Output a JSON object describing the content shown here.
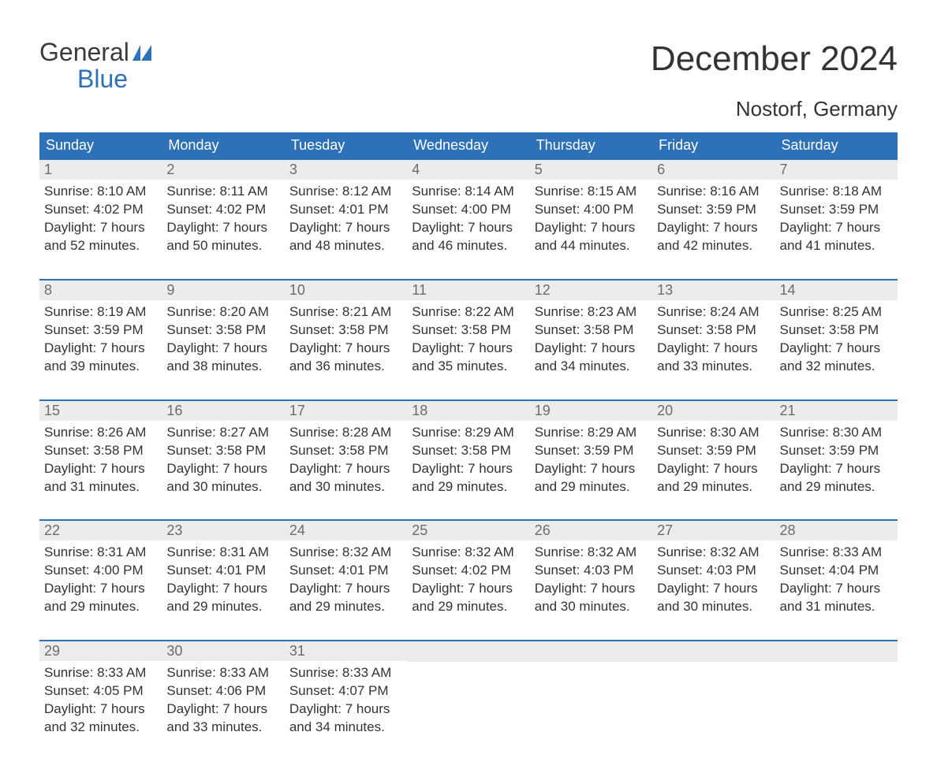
{
  "logo": {
    "text1": "General",
    "text2": "Blue"
  },
  "title": "December 2024",
  "subtitle": "Nostorf, Germany",
  "colors": {
    "header_bg": "#2d72b8",
    "header_text": "#ffffff",
    "daynum_bg": "#ececec",
    "daynum_text": "#6c6c6c",
    "body_text": "#333333",
    "week_border": "#2d72b8",
    "page_bg": "#ffffff"
  },
  "typography": {
    "title_fontsize": 44,
    "subtitle_fontsize": 26,
    "weekday_fontsize": 18,
    "daynum_fontsize": 18,
    "body_fontsize": 17,
    "logo_fontsize": 32
  },
  "weekdays": [
    "Sunday",
    "Monday",
    "Tuesday",
    "Wednesday",
    "Thursday",
    "Friday",
    "Saturday"
  ],
  "weeks": [
    [
      {
        "n": "1",
        "sunrise": "Sunrise: 8:10 AM",
        "sunset": "Sunset: 4:02 PM",
        "d1": "Daylight: 7 hours",
        "d2": "and 52 minutes."
      },
      {
        "n": "2",
        "sunrise": "Sunrise: 8:11 AM",
        "sunset": "Sunset: 4:02 PM",
        "d1": "Daylight: 7 hours",
        "d2": "and 50 minutes."
      },
      {
        "n": "3",
        "sunrise": "Sunrise: 8:12 AM",
        "sunset": "Sunset: 4:01 PM",
        "d1": "Daylight: 7 hours",
        "d2": "and 48 minutes."
      },
      {
        "n": "4",
        "sunrise": "Sunrise: 8:14 AM",
        "sunset": "Sunset: 4:00 PM",
        "d1": "Daylight: 7 hours",
        "d2": "and 46 minutes."
      },
      {
        "n": "5",
        "sunrise": "Sunrise: 8:15 AM",
        "sunset": "Sunset: 4:00 PM",
        "d1": "Daylight: 7 hours",
        "d2": "and 44 minutes."
      },
      {
        "n": "6",
        "sunrise": "Sunrise: 8:16 AM",
        "sunset": "Sunset: 3:59 PM",
        "d1": "Daylight: 7 hours",
        "d2": "and 42 minutes."
      },
      {
        "n": "7",
        "sunrise": "Sunrise: 8:18 AM",
        "sunset": "Sunset: 3:59 PM",
        "d1": "Daylight: 7 hours",
        "d2": "and 41 minutes."
      }
    ],
    [
      {
        "n": "8",
        "sunrise": "Sunrise: 8:19 AM",
        "sunset": "Sunset: 3:59 PM",
        "d1": "Daylight: 7 hours",
        "d2": "and 39 minutes."
      },
      {
        "n": "9",
        "sunrise": "Sunrise: 8:20 AM",
        "sunset": "Sunset: 3:58 PM",
        "d1": "Daylight: 7 hours",
        "d2": "and 38 minutes."
      },
      {
        "n": "10",
        "sunrise": "Sunrise: 8:21 AM",
        "sunset": "Sunset: 3:58 PM",
        "d1": "Daylight: 7 hours",
        "d2": "and 36 minutes."
      },
      {
        "n": "11",
        "sunrise": "Sunrise: 8:22 AM",
        "sunset": "Sunset: 3:58 PM",
        "d1": "Daylight: 7 hours",
        "d2": "and 35 minutes."
      },
      {
        "n": "12",
        "sunrise": "Sunrise: 8:23 AM",
        "sunset": "Sunset: 3:58 PM",
        "d1": "Daylight: 7 hours",
        "d2": "and 34 minutes."
      },
      {
        "n": "13",
        "sunrise": "Sunrise: 8:24 AM",
        "sunset": "Sunset: 3:58 PM",
        "d1": "Daylight: 7 hours",
        "d2": "and 33 minutes."
      },
      {
        "n": "14",
        "sunrise": "Sunrise: 8:25 AM",
        "sunset": "Sunset: 3:58 PM",
        "d1": "Daylight: 7 hours",
        "d2": "and 32 minutes."
      }
    ],
    [
      {
        "n": "15",
        "sunrise": "Sunrise: 8:26 AM",
        "sunset": "Sunset: 3:58 PM",
        "d1": "Daylight: 7 hours",
        "d2": "and 31 minutes."
      },
      {
        "n": "16",
        "sunrise": "Sunrise: 8:27 AM",
        "sunset": "Sunset: 3:58 PM",
        "d1": "Daylight: 7 hours",
        "d2": "and 30 minutes."
      },
      {
        "n": "17",
        "sunrise": "Sunrise: 8:28 AM",
        "sunset": "Sunset: 3:58 PM",
        "d1": "Daylight: 7 hours",
        "d2": "and 30 minutes."
      },
      {
        "n": "18",
        "sunrise": "Sunrise: 8:29 AM",
        "sunset": "Sunset: 3:58 PM",
        "d1": "Daylight: 7 hours",
        "d2": "and 29 minutes."
      },
      {
        "n": "19",
        "sunrise": "Sunrise: 8:29 AM",
        "sunset": "Sunset: 3:59 PM",
        "d1": "Daylight: 7 hours",
        "d2": "and 29 minutes."
      },
      {
        "n": "20",
        "sunrise": "Sunrise: 8:30 AM",
        "sunset": "Sunset: 3:59 PM",
        "d1": "Daylight: 7 hours",
        "d2": "and 29 minutes."
      },
      {
        "n": "21",
        "sunrise": "Sunrise: 8:30 AM",
        "sunset": "Sunset: 3:59 PM",
        "d1": "Daylight: 7 hours",
        "d2": "and 29 minutes."
      }
    ],
    [
      {
        "n": "22",
        "sunrise": "Sunrise: 8:31 AM",
        "sunset": "Sunset: 4:00 PM",
        "d1": "Daylight: 7 hours",
        "d2": "and 29 minutes."
      },
      {
        "n": "23",
        "sunrise": "Sunrise: 8:31 AM",
        "sunset": "Sunset: 4:01 PM",
        "d1": "Daylight: 7 hours",
        "d2": "and 29 minutes."
      },
      {
        "n": "24",
        "sunrise": "Sunrise: 8:32 AM",
        "sunset": "Sunset: 4:01 PM",
        "d1": "Daylight: 7 hours",
        "d2": "and 29 minutes."
      },
      {
        "n": "25",
        "sunrise": "Sunrise: 8:32 AM",
        "sunset": "Sunset: 4:02 PM",
        "d1": "Daylight: 7 hours",
        "d2": "and 29 minutes."
      },
      {
        "n": "26",
        "sunrise": "Sunrise: 8:32 AM",
        "sunset": "Sunset: 4:03 PM",
        "d1": "Daylight: 7 hours",
        "d2": "and 30 minutes."
      },
      {
        "n": "27",
        "sunrise": "Sunrise: 8:32 AM",
        "sunset": "Sunset: 4:03 PM",
        "d1": "Daylight: 7 hours",
        "d2": "and 30 minutes."
      },
      {
        "n": "28",
        "sunrise": "Sunrise: 8:33 AM",
        "sunset": "Sunset: 4:04 PM",
        "d1": "Daylight: 7 hours",
        "d2": "and 31 minutes."
      }
    ],
    [
      {
        "n": "29",
        "sunrise": "Sunrise: 8:33 AM",
        "sunset": "Sunset: 4:05 PM",
        "d1": "Daylight: 7 hours",
        "d2": "and 32 minutes."
      },
      {
        "n": "30",
        "sunrise": "Sunrise: 8:33 AM",
        "sunset": "Sunset: 4:06 PM",
        "d1": "Daylight: 7 hours",
        "d2": "and 33 minutes."
      },
      {
        "n": "31",
        "sunrise": "Sunrise: 8:33 AM",
        "sunset": "Sunset: 4:07 PM",
        "d1": "Daylight: 7 hours",
        "d2": "and 34 minutes."
      },
      {
        "empty": true
      },
      {
        "empty": true
      },
      {
        "empty": true
      },
      {
        "empty": true
      }
    ]
  ]
}
